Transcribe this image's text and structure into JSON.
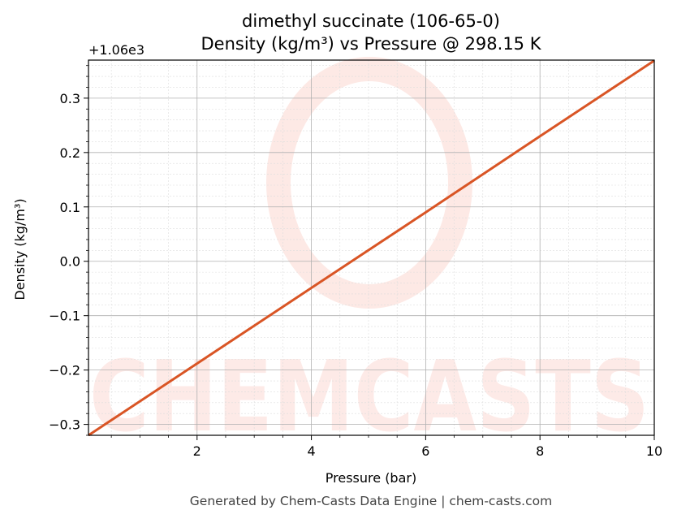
{
  "chart_data": {
    "type": "line",
    "title": "dimethyl succinate (106-65-0)",
    "subtitle": "Density (kg/m³) vs Pressure @ 298.15 K",
    "xlabel": "Pressure (bar)",
    "ylabel": "Density (kg/m³)",
    "y_offset_label": "+1.06e3",
    "xlim": [
      0.1,
      10
    ],
    "ylim": [
      -0.32,
      0.37
    ],
    "x_ticks": [
      2,
      4,
      6,
      8,
      10
    ],
    "x_tick_labels": [
      "2",
      "4",
      "6",
      "8",
      "10"
    ],
    "y_ticks": [
      -0.3,
      -0.2,
      -0.1,
      0.0,
      0.1,
      0.2,
      0.3
    ],
    "y_tick_labels": [
      "−0.3",
      "−0.2",
      "−0.1",
      "0.0",
      "0.1",
      "0.2",
      "0.3"
    ],
    "grid": true,
    "series": [
      {
        "color": "#d95525",
        "x": [
          0.1,
          2,
          4,
          6,
          8,
          10
        ],
        "y": [
          -0.32,
          -0.188,
          -0.049,
          0.09,
          0.23,
          0.369
        ]
      }
    ]
  },
  "watermark": {
    "text": "CHEMCASTS",
    "color": "#fdd9d4"
  },
  "footer": "Generated by Chem-Casts Data Engine | chem-casts.com"
}
